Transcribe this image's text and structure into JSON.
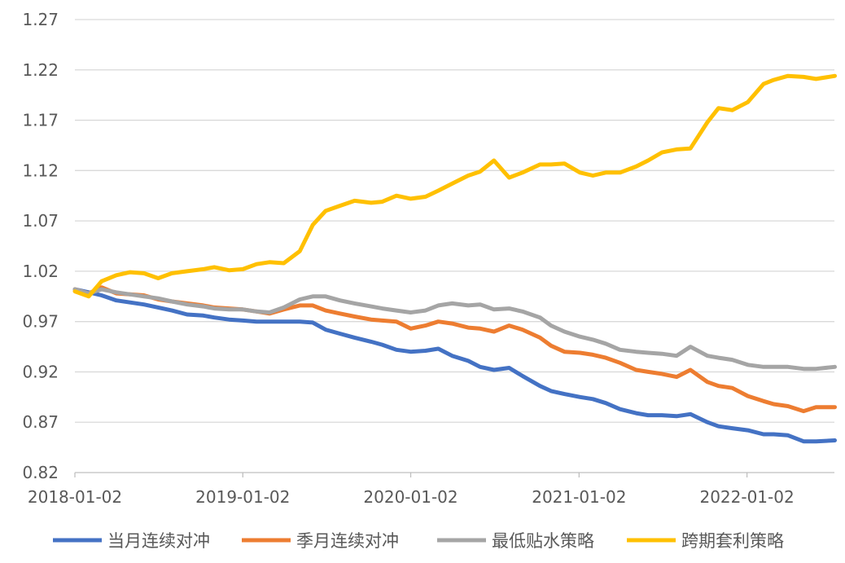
{
  "chart_data": {
    "type": "line",
    "title": "",
    "xlabel": "",
    "ylabel": "",
    "ylim": [
      0.82,
      1.27
    ],
    "y_ticks": [
      "0.82",
      "0.87",
      "0.92",
      "0.97",
      "1.02",
      "1.07",
      "1.12",
      "1.17",
      "1.22",
      "1.27"
    ],
    "x_ticks": [
      "2018-01-02",
      "2019-01-02",
      "2020-01-02",
      "2021-01-02",
      "2022-01-02"
    ],
    "grid": "horizontal",
    "legend": "bottom",
    "x": [
      "2018-01-02",
      "2018-02-01",
      "2018-03-01",
      "2018-04-02",
      "2018-05-02",
      "2018-06-01",
      "2018-07-02",
      "2018-08-01",
      "2018-09-03",
      "2018-10-08",
      "2018-11-01",
      "2018-12-03",
      "2019-01-02",
      "2019-02-01",
      "2019-03-01",
      "2019-04-01",
      "2019-05-06",
      "2019-06-03",
      "2019-07-01",
      "2019-08-01",
      "2019-09-02",
      "2019-10-08",
      "2019-11-01",
      "2019-12-02",
      "2020-01-02",
      "2020-02-03",
      "2020-03-02",
      "2020-04-01",
      "2020-05-06",
      "2020-06-01",
      "2020-07-01",
      "2020-08-03",
      "2020-09-01",
      "2020-10-09",
      "2020-11-02",
      "2020-12-01",
      "2021-01-04",
      "2021-02-01",
      "2021-03-01",
      "2021-04-01",
      "2021-05-06",
      "2021-06-01",
      "2021-07-01",
      "2021-08-02",
      "2021-09-01",
      "2021-10-08",
      "2021-11-01",
      "2021-12-01",
      "2022-01-04",
      "2022-02-07",
      "2022-03-01",
      "2022-04-01",
      "2022-05-05",
      "2022-06-01",
      "2022-07-12"
    ],
    "series": [
      {
        "name": "当月连续对冲",
        "color": "#4472C4",
        "values": [
          1.002,
          0.999,
          0.996,
          0.991,
          0.989,
          0.987,
          0.984,
          0.981,
          0.977,
          0.976,
          0.974,
          0.972,
          0.971,
          0.97,
          0.97,
          0.97,
          0.97,
          0.969,
          0.962,
          0.958,
          0.954,
          0.95,
          0.947,
          0.942,
          0.94,
          0.941,
          0.943,
          0.936,
          0.931,
          0.925,
          0.922,
          0.924,
          0.916,
          0.906,
          0.901,
          0.898,
          0.895,
          0.893,
          0.889,
          0.883,
          0.879,
          0.877,
          0.877,
          0.876,
          0.878,
          0.87,
          0.866,
          0.864,
          0.862,
          0.858,
          0.858,
          0.857,
          0.851,
          0.851,
          0.852
        ]
      },
      {
        "name": "季月连续对冲",
        "color": "#ED7D31",
        "values": [
          1.002,
          0.998,
          1.004,
          0.998,
          0.997,
          0.996,
          0.992,
          0.99,
          0.988,
          0.986,
          0.984,
          0.983,
          0.982,
          0.98,
          0.978,
          0.982,
          0.986,
          0.986,
          0.981,
          0.978,
          0.975,
          0.972,
          0.971,
          0.97,
          0.963,
          0.966,
          0.97,
          0.968,
          0.964,
          0.963,
          0.96,
          0.966,
          0.962,
          0.954,
          0.946,
          0.94,
          0.939,
          0.937,
          0.934,
          0.929,
          0.922,
          0.92,
          0.918,
          0.915,
          0.922,
          0.91,
          0.906,
          0.904,
          0.896,
          0.891,
          0.888,
          0.886,
          0.881,
          0.885,
          0.885
        ]
      },
      {
        "name": "最低贴水策略",
        "color": "#A5A5A5",
        "values": [
          1.002,
          0.998,
          1.002,
          0.999,
          0.997,
          0.995,
          0.993,
          0.99,
          0.987,
          0.985,
          0.983,
          0.982,
          0.982,
          0.98,
          0.979,
          0.984,
          0.992,
          0.995,
          0.995,
          0.991,
          0.988,
          0.985,
          0.983,
          0.981,
          0.979,
          0.981,
          0.986,
          0.988,
          0.986,
          0.987,
          0.982,
          0.983,
          0.98,
          0.974,
          0.966,
          0.96,
          0.955,
          0.952,
          0.948,
          0.942,
          0.94,
          0.939,
          0.938,
          0.936,
          0.945,
          0.936,
          0.934,
          0.932,
          0.927,
          0.925,
          0.925,
          0.925,
          0.923,
          0.923,
          0.925
        ]
      },
      {
        "name": "跨期套利策略",
        "color": "#FFC000",
        "values": [
          1.0,
          0.995,
          1.01,
          1.016,
          1.019,
          1.018,
          1.013,
          1.018,
          1.02,
          1.022,
          1.024,
          1.021,
          1.022,
          1.027,
          1.029,
          1.028,
          1.04,
          1.066,
          1.08,
          1.085,
          1.09,
          1.088,
          1.089,
          1.095,
          1.092,
          1.094,
          1.1,
          1.107,
          1.115,
          1.119,
          1.13,
          1.113,
          1.118,
          1.126,
          1.126,
          1.127,
          1.118,
          1.115,
          1.118,
          1.118,
          1.124,
          1.13,
          1.138,
          1.141,
          1.142,
          1.168,
          1.182,
          1.18,
          1.188,
          1.206,
          1.21,
          1.214,
          1.213,
          1.211,
          1.214
        ]
      }
    ]
  }
}
